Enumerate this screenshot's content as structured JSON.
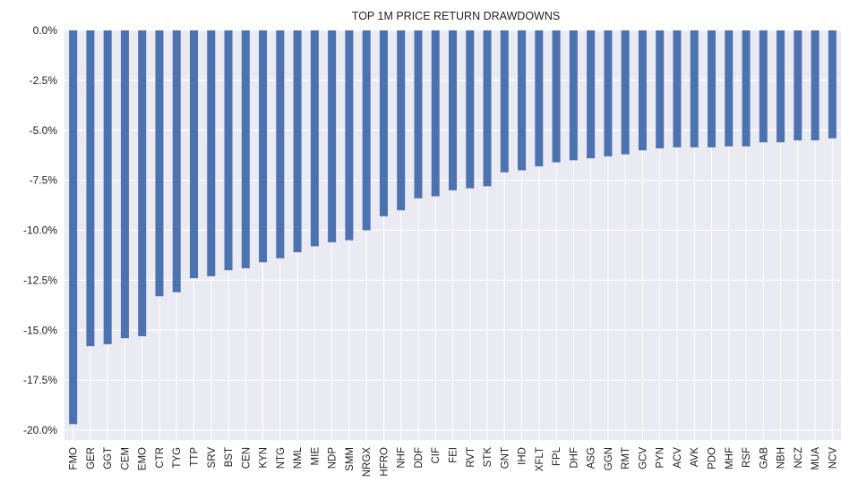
{
  "colors": {
    "bar": "#4c72b0",
    "plot_background": "#eaeaf2",
    "grid": "#ffffff"
  },
  "chart_data": {
    "type": "bar",
    "title": "TOP 1M PRICE RETURN DRAWDOWNS",
    "xlabel": "",
    "ylabel": "",
    "ylim": [
      -20.5,
      0.0
    ],
    "y_ticks": [
      0.0,
      -2.5,
      -5.0,
      -7.5,
      -10.0,
      -12.5,
      -15.0,
      -17.5,
      -20.0
    ],
    "y_tick_labels": [
      "0.0%",
      "-2.5%",
      "-5.0%",
      "-7.5%",
      "-10.0%",
      "-12.5%",
      "-15.0%",
      "-17.5%",
      "-20.0%"
    ],
    "grid": true,
    "legend": "none",
    "categories": [
      "FMO",
      "GER",
      "GGT",
      "CEM",
      "EMO",
      "CTR",
      "TYG",
      "TTP",
      "SRV",
      "BST",
      "CEN",
      "KYN",
      "NTG",
      "NML",
      "MIE",
      "NDP",
      "SMM",
      "NRGX",
      "HFRO",
      "NHF",
      "DDF",
      "CIF",
      "FEI",
      "RVT",
      "STK",
      "GNT",
      "IHD",
      "XFLT",
      "FPL",
      "DHF",
      "ASG",
      "GGN",
      "RMT",
      "GCV",
      "PYN",
      "ACV",
      "AVK",
      "PDO",
      "MHF",
      "RSF",
      "GAB",
      "NBH",
      "NCZ",
      "MUA",
      "NCV"
    ],
    "values": [
      -19.7,
      -15.8,
      -15.7,
      -15.4,
      -15.3,
      -13.3,
      -13.1,
      -12.4,
      -12.3,
      -12.0,
      -11.9,
      -11.6,
      -11.4,
      -11.1,
      -10.8,
      -10.6,
      -10.5,
      -10.0,
      -9.3,
      -9.0,
      -8.4,
      -8.3,
      -8.0,
      -7.9,
      -7.8,
      -7.1,
      -7.0,
      -6.8,
      -6.6,
      -6.5,
      -6.4,
      -6.3,
      -6.2,
      -6.0,
      -5.9,
      -5.85,
      -5.85,
      -5.85,
      -5.8,
      -5.8,
      -5.6,
      -5.6,
      -5.5,
      -5.5,
      -5.4
    ]
  }
}
